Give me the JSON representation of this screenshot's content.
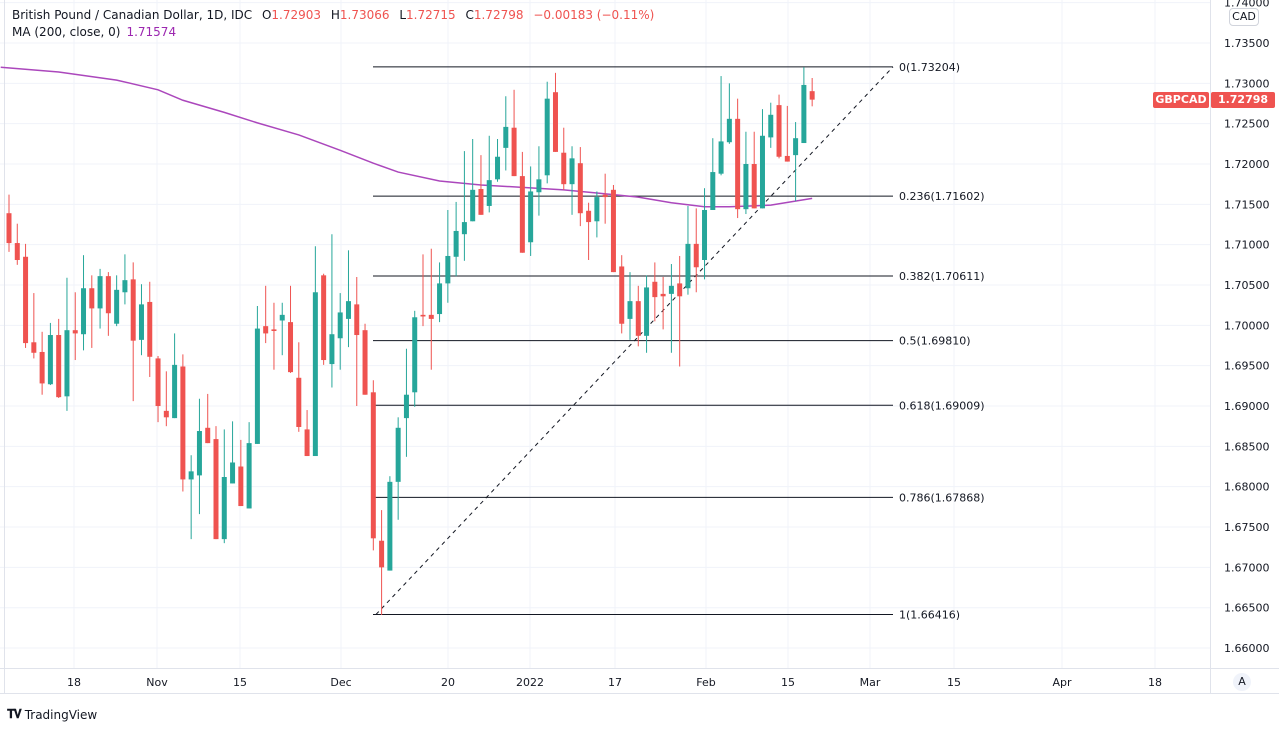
{
  "legend": {
    "symbol": "British Pound / Canadian Dollar, 1D, IDC",
    "o_label": "O",
    "o": "1.72903",
    "h_label": "H",
    "h": "1.73066",
    "l_label": "L",
    "l": "1.72715",
    "c_label": "C",
    "c": "1.72798",
    "change": "−0.00183 (−0.11%)",
    "ma_label": "MA (200, close, 0)",
    "ma_value": "1.71574"
  },
  "price_axis": {
    "currency": "CAD",
    "symbol_tag": "GBPCAD",
    "last_price": "1.72798"
  },
  "time_axis": {
    "auto_button": "A"
  },
  "branding": "TradingView",
  "colors": {
    "up": "#26a69a",
    "down": "#ef5350",
    "ma": "#ab47bc",
    "fib_line": "#131722",
    "grid": "#f0f3fa"
  },
  "chart_data": {
    "type": "candlestick",
    "title": "British Pound / Canadian Dollar, 1D, IDC",
    "ylim": [
      1.6575,
      1.7405
    ],
    "y_ticks": [
      "1.74000",
      "1.73500",
      "1.73000",
      "1.72500",
      "1.72000",
      "1.71500",
      "1.71000",
      "1.70500",
      "1.70000",
      "1.69500",
      "1.69000",
      "1.68500",
      "1.68000",
      "1.67500",
      "1.67000",
      "1.66500",
      "1.66000"
    ],
    "x_tick_labels": [
      "18",
      "Nov",
      "15",
      "Dec",
      "20",
      "2022",
      "17",
      "Feb",
      "15",
      "Mar",
      "15",
      "Apr",
      "18"
    ],
    "grid": true,
    "ohlc_fields": [
      "open",
      "high",
      "low",
      "close"
    ],
    "ohlc": [
      [
        1.7139,
        1.7162,
        1.7091,
        1.7102
      ],
      [
        1.7102,
        1.7126,
        1.7075,
        1.7081
      ],
      [
        1.7085,
        1.7101,
        1.6972,
        1.6978
      ],
      [
        1.6979,
        1.704,
        1.6959,
        1.6966
      ],
      [
        1.6967,
        1.6992,
        1.6914,
        1.6928
      ],
      [
        1.6927,
        1.7003,
        1.6926,
        1.6988
      ],
      [
        1.6988,
        1.7008,
        1.691,
        1.6911
      ],
      [
        1.6912,
        1.7059,
        1.6894,
        1.6994
      ],
      [
        1.6994,
        1.7041,
        1.6957,
        1.699
      ],
      [
        1.6989,
        1.7087,
        1.6969,
        1.7046
      ],
      [
        1.7046,
        1.7062,
        1.6972,
        1.7021
      ],
      [
        1.7021,
        1.707,
        1.6996,
        1.7061
      ],
      [
        1.7061,
        1.7066,
        1.6987,
        1.7015
      ],
      [
        1.7002,
        1.7062,
        1.6999,
        1.7044
      ],
      [
        1.7041,
        1.7088,
        1.7026,
        1.7056
      ],
      [
        1.7057,
        1.7078,
        1.6906,
        1.6981
      ],
      [
        1.6982,
        1.7051,
        1.6963,
        1.7026
      ],
      [
        1.7029,
        1.7054,
        1.6936,
        1.6961
      ],
      [
        1.6959,
        1.6962,
        1.688,
        1.69
      ],
      [
        1.6894,
        1.6943,
        1.6875,
        1.6886
      ],
      [
        1.6885,
        1.699,
        1.6885,
        1.6951
      ],
      [
        1.6949,
        1.6964,
        1.6794,
        1.6809
      ],
      [
        1.6809,
        1.6839,
        1.6735,
        1.6819
      ],
      [
        1.6814,
        1.6909,
        1.6766,
        1.6869
      ],
      [
        1.6873,
        1.6915,
        1.6854,
        1.6854
      ],
      [
        1.6859,
        1.6875,
        1.6735,
        1.6735
      ],
      [
        1.6735,
        1.6871,
        1.673,
        1.6812
      ],
      [
        1.6804,
        1.6881,
        1.6804,
        1.683
      ],
      [
        1.6825,
        1.6858,
        1.6776,
        1.6776
      ],
      [
        1.6773,
        1.688,
        1.6773,
        1.6854
      ],
      [
        1.6853,
        1.7024,
        1.6853,
        1.6996
      ],
      [
        1.6999,
        1.7049,
        1.6978,
        1.699
      ],
      [
        1.6995,
        1.7028,
        1.6945,
        1.6993
      ],
      [
        1.7006,
        1.7028,
        1.6963,
        1.7013
      ],
      [
        1.7004,
        1.7049,
        1.6941,
        1.6942
      ],
      [
        1.6935,
        1.6979,
        1.6868,
        1.6874
      ],
      [
        1.6871,
        1.6895,
        1.6838,
        1.6838
      ],
      [
        1.6838,
        1.7098,
        1.6838,
        1.7041
      ],
      [
        1.7062,
        1.7064,
        1.6951,
        1.6957
      ],
      [
        1.6952,
        1.7113,
        1.6923,
        1.6989
      ],
      [
        1.6984,
        1.704,
        1.6945,
        1.7016
      ],
      [
        1.7008,
        1.7093,
        1.6973,
        1.703
      ],
      [
        1.7026,
        1.706,
        1.69,
        1.6988
      ],
      [
        1.6994,
        1.7002,
        1.6914,
        1.6914
      ],
      [
        1.6917,
        1.6932,
        1.6721,
        1.6736
      ],
      [
        1.6733,
        1.6771,
        1.6641,
        1.67
      ],
      [
        1.6696,
        1.6813,
        1.6696,
        1.6806
      ],
      [
        1.6806,
        1.6886,
        1.6759,
        1.6873
      ],
      [
        1.6885,
        1.6971,
        1.6837,
        1.6914
      ],
      [
        1.6917,
        1.7018,
        1.6899,
        1.701
      ],
      [
        1.7013,
        1.7088,
        1.6999,
        1.7011
      ],
      [
        1.7013,
        1.7095,
        1.6945,
        1.7008
      ],
      [
        1.7014,
        1.7078,
        1.7004,
        1.7052
      ],
      [
        1.7052,
        1.7143,
        1.7028,
        1.7086
      ],
      [
        1.7085,
        1.7153,
        1.7061,
        1.7117
      ],
      [
        1.7113,
        1.7216,
        1.708,
        1.7128
      ],
      [
        1.7129,
        1.7231,
        1.7129,
        1.7168
      ],
      [
        1.7169,
        1.7211,
        1.7137,
        1.7137
      ],
      [
        1.7148,
        1.7235,
        1.714,
        1.718
      ],
      [
        1.7181,
        1.7231,
        1.7178,
        1.7209
      ],
      [
        1.722,
        1.7284,
        1.7192,
        1.7246
      ],
      [
        1.7245,
        1.7292,
        1.7185,
        1.7185
      ],
      [
        1.7185,
        1.7215,
        1.709,
        1.709
      ],
      [
        1.7103,
        1.7197,
        1.7086,
        1.7166
      ],
      [
        1.7165,
        1.7222,
        1.7136,
        1.7181
      ],
      [
        1.7186,
        1.7302,
        1.7176,
        1.7281
      ],
      [
        1.7289,
        1.7313,
        1.7215,
        1.7215
      ],
      [
        1.7214,
        1.7245,
        1.7168,
        1.7175
      ],
      [
        1.7175,
        1.7222,
        1.7137,
        1.7207
      ],
      [
        1.7201,
        1.7221,
        1.7123,
        1.7139
      ],
      [
        1.7142,
        1.7152,
        1.7081,
        1.7128
      ],
      [
        1.7129,
        1.7166,
        1.7109,
        1.7159
      ],
      [
        1.7162,
        1.7188,
        1.7126,
        1.7159
      ],
      [
        1.7168,
        1.7174,
        1.7066,
        1.7066
      ],
      [
        1.7073,
        1.7087,
        1.699,
        1.7002
      ],
      [
        1.7008,
        1.7066,
        1.6982,
        1.703
      ],
      [
        1.703,
        1.7049,
        1.6974,
        1.6987
      ],
      [
        1.6987,
        1.7062,
        1.6966,
        1.7047
      ],
      [
        1.7054,
        1.7078,
        1.7005,
        1.7035
      ],
      [
        1.7039,
        1.706,
        1.6995,
        1.7036
      ],
      [
        1.7039,
        1.7076,
        1.6966,
        1.7049
      ],
      [
        1.7052,
        1.7086,
        1.6949,
        1.7036
      ],
      [
        1.7046,
        1.7148,
        1.7038,
        1.7101
      ],
      [
        1.7101,
        1.7145,
        1.7041,
        1.7072
      ],
      [
        1.7081,
        1.717,
        1.7057,
        1.7143
      ],
      [
        1.7143,
        1.7232,
        1.7143,
        1.719
      ],
      [
        1.7188,
        1.7309,
        1.7186,
        1.7228
      ],
      [
        1.7227,
        1.73,
        1.7225,
        1.7256
      ],
      [
        1.7256,
        1.7281,
        1.7133,
        1.7144
      ],
      [
        1.7144,
        1.724,
        1.7138,
        1.72
      ],
      [
        1.72,
        1.724,
        1.7145,
        1.7145
      ],
      [
        1.7145,
        1.7268,
        1.7145,
        1.7235
      ],
      [
        1.7233,
        1.7276,
        1.722,
        1.7261
      ],
      [
        1.7273,
        1.7286,
        1.7207,
        1.7209
      ],
      [
        1.721,
        1.7272,
        1.7203,
        1.7203
      ],
      [
        1.7211,
        1.7252,
        1.7154,
        1.7232
      ],
      [
        1.7226,
        1.732,
        1.7226,
        1.7298
      ],
      [
        1.72903,
        1.73066,
        1.72715,
        1.72798
      ]
    ],
    "ma": {
      "label": "MA (200, close, 0)",
      "points_bar_value": [
        [
          -1,
          1.732
        ],
        [
          6,
          1.7314
        ],
        [
          13,
          1.7304
        ],
        [
          18,
          1.7292
        ],
        [
          21,
          1.7279
        ],
        [
          26,
          1.7264
        ],
        [
          30,
          1.7251
        ],
        [
          35,
          1.7236
        ],
        [
          40,
          1.7217
        ],
        [
          44,
          1.7201
        ],
        [
          47,
          1.719
        ],
        [
          52,
          1.7179
        ],
        [
          57,
          1.7174
        ],
        [
          62,
          1.7171
        ],
        [
          67,
          1.7168
        ],
        [
          71,
          1.7164
        ],
        [
          76,
          1.7159
        ],
        [
          80,
          1.7152
        ],
        [
          84,
          1.7147
        ],
        [
          87,
          1.7147
        ],
        [
          92,
          1.7149
        ],
        [
          97,
          1.71574
        ]
      ]
    },
    "fibonacci": {
      "levels": [
        {
          "label": "0(1.73204)",
          "ratio": 0,
          "price": 1.73204
        },
        {
          "label": "0.236(1.71602)",
          "ratio": 0.236,
          "price": 1.71602
        },
        {
          "label": "0.382(1.70611)",
          "ratio": 0.382,
          "price": 1.70611
        },
        {
          "label": "0.5(1.69810)",
          "ratio": 0.5,
          "price": 1.6981
        },
        {
          "label": "0.618(1.69009)",
          "ratio": 0.618,
          "price": 1.69009
        },
        {
          "label": "0.786(1.67868)",
          "ratio": 0.786,
          "price": 1.67868
        },
        {
          "label": "1(1.66416)",
          "ratio": 1,
          "price": 1.66416
        }
      ],
      "trend_from_price": 1.66416,
      "trend_to_price": 1.73204
    }
  }
}
